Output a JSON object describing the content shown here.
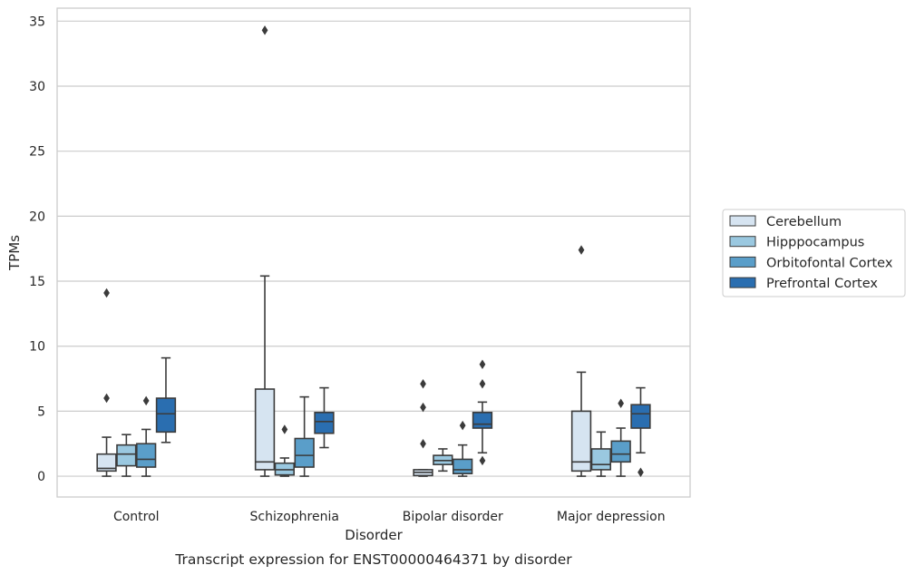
{
  "chart_data": {
    "type": "boxplot",
    "caption": "Transcript expression for ENST00000464371 by disorder",
    "xlabel": "Disorder",
    "ylabel": "TPMs",
    "ylim": [
      -1.6,
      36
    ],
    "yticks": [
      0,
      5,
      10,
      15,
      20,
      25,
      30,
      35
    ],
    "grid": true,
    "legend_position": "right",
    "categories": [
      "Control",
      "Schizophrenia",
      "Bipolar disorder",
      "Major depression"
    ],
    "series": [
      {
        "name": "Cerebellum",
        "color": "#d6e4f1",
        "boxes": [
          {
            "whislo": 0,
            "q1": 0.4,
            "med": 0.6,
            "q3": 1.7,
            "whishi": 3.0,
            "fliers": [
              6.0,
              14.1
            ]
          },
          {
            "whislo": 0,
            "q1": 0.5,
            "med": 1.1,
            "q3": 6.7,
            "whishi": 15.4,
            "fliers": [
              34.3
            ]
          },
          {
            "whislo": 0,
            "q1": 0.05,
            "med": 0.3,
            "q3": 0.5,
            "whishi": 0.5,
            "fliers": [
              2.5,
              5.3,
              7.1
            ]
          },
          {
            "whislo": 0,
            "q1": 0.4,
            "med": 1.1,
            "q3": 5.0,
            "whishi": 8.0,
            "fliers": [
              17.4
            ]
          }
        ]
      },
      {
        "name": "Hipppocampus",
        "color": "#9ac8e0",
        "boxes": [
          {
            "whislo": 0,
            "q1": 0.8,
            "med": 1.7,
            "q3": 2.4,
            "whishi": 3.2,
            "fliers": []
          },
          {
            "whislo": 0,
            "q1": 0.1,
            "med": 0.5,
            "q3": 1.0,
            "whishi": 1.4,
            "fliers": [
              3.6
            ]
          },
          {
            "whislo": 0.4,
            "q1": 0.9,
            "med": 1.2,
            "q3": 1.6,
            "whishi": 2.1,
            "fliers": []
          },
          {
            "whislo": 0,
            "q1": 0.5,
            "med": 0.9,
            "q3": 2.1,
            "whishi": 3.4,
            "fliers": []
          }
        ]
      },
      {
        "name": "Orbitofontal Cortex",
        "color": "#5a9ec9",
        "boxes": [
          {
            "whislo": 0,
            "q1": 0.7,
            "med": 1.3,
            "q3": 2.5,
            "whishi": 3.6,
            "fliers": [
              5.8
            ]
          },
          {
            "whislo": 0,
            "q1": 0.7,
            "med": 1.6,
            "q3": 2.9,
            "whishi": 6.1,
            "fliers": []
          },
          {
            "whislo": 0,
            "q1": 0.2,
            "med": 0.5,
            "q3": 1.3,
            "whishi": 2.4,
            "fliers": [
              3.9
            ]
          },
          {
            "whislo": 0,
            "q1": 1.1,
            "med": 1.7,
            "q3": 2.7,
            "whishi": 3.7,
            "fliers": [
              5.6
            ]
          }
        ]
      },
      {
        "name": "Prefrontal Cortex",
        "color": "#2a6eb0",
        "boxes": [
          {
            "whislo": 2.6,
            "q1": 3.4,
            "med": 4.8,
            "q3": 6.0,
            "whishi": 9.1,
            "fliers": []
          },
          {
            "whislo": 2.2,
            "q1": 3.3,
            "med": 4.2,
            "q3": 4.9,
            "whishi": 6.8,
            "fliers": []
          },
          {
            "whislo": 1.8,
            "q1": 3.7,
            "med": 4.0,
            "q3": 4.9,
            "whishi": 5.7,
            "fliers": [
              1.2,
              7.1,
              8.6
            ]
          },
          {
            "whislo": 1.8,
            "q1": 3.7,
            "med": 4.8,
            "q3": 5.5,
            "whishi": 6.8,
            "fliers": [
              0.3
            ]
          }
        ]
      }
    ]
  }
}
